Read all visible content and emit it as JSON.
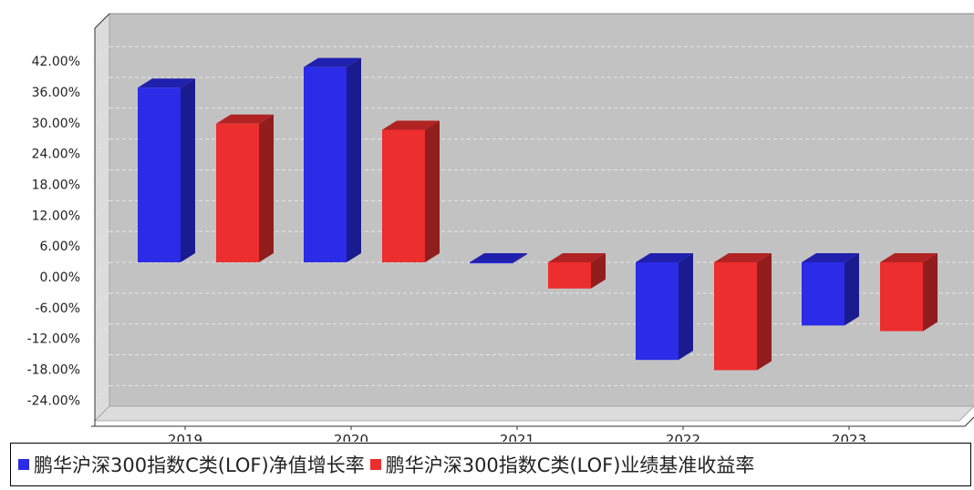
{
  "chart_data": {
    "type": "bar",
    "categories": [
      "2019",
      "2020",
      "2021",
      "2022",
      "2023"
    ],
    "series": [
      {
        "name": "鹏华沪深300指数C类(LOF)净值增长率",
        "color": "#2b2be8",
        "values": [
          34.0,
          38.0,
          -0.2,
          -19.0,
          -12.3
        ]
      },
      {
        "name": "鹏华沪深300指数C类(LOF)业绩基准收益率",
        "color": "#ec2e2e",
        "values": [
          27.0,
          25.8,
          -5.1,
          -21.0,
          -13.4
        ]
      }
    ],
    "y_ticks": [
      "42.00%",
      "36.00%",
      "30.00%",
      "24.00%",
      "18.00%",
      "12.00%",
      "6.00%",
      "0.00%",
      "-6.00%",
      "-12.00%",
      "-18.00%",
      "-24.00%"
    ],
    "ylim": [
      -30,
      48
    ],
    "grid": true,
    "legend_position": "bottom",
    "background": "#c2c2c2"
  }
}
